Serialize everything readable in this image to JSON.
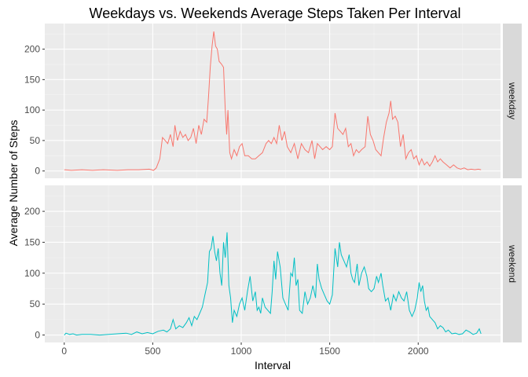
{
  "chart_data": {
    "type": "line",
    "title": "Weekdays vs. Weekends Average Steps Taken Per Interval",
    "xlabel": "Interval",
    "ylabel": "Average Number of Steps",
    "xlim": [
      -110,
      2465
    ],
    "ylim": [
      -12,
      242
    ],
    "x_ticks": [
      0,
      500,
      1000,
      1500,
      2000
    ],
    "y_ticks": [
      0,
      50,
      100,
      150,
      200
    ],
    "grid": true,
    "facet_by": "day type",
    "panel_background": "#ebebeb",
    "strip_background": "#d9d9d9",
    "panels": [
      {
        "label": "weekday",
        "color": "#F8766D",
        "points": [
          [
            0,
            2
          ],
          [
            40,
            1
          ],
          [
            100,
            2
          ],
          [
            160,
            1
          ],
          [
            220,
            2
          ],
          [
            300,
            1
          ],
          [
            360,
            2
          ],
          [
            420,
            2
          ],
          [
            480,
            3
          ],
          [
            505,
            1
          ],
          [
            520,
            5
          ],
          [
            540,
            20
          ],
          [
            555,
            55
          ],
          [
            570,
            50
          ],
          [
            585,
            45
          ],
          [
            600,
            60
          ],
          [
            615,
            40
          ],
          [
            625,
            75
          ],
          [
            640,
            50
          ],
          [
            655,
            65
          ],
          [
            670,
            55
          ],
          [
            685,
            60
          ],
          [
            700,
            50
          ],
          [
            715,
            55
          ],
          [
            730,
            70
          ],
          [
            745,
            45
          ],
          [
            760,
            75
          ],
          [
            775,
            60
          ],
          [
            790,
            85
          ],
          [
            805,
            80
          ],
          [
            815,
            120
          ],
          [
            825,
            170
          ],
          [
            835,
            205
          ],
          [
            845,
            229
          ],
          [
            855,
            205
          ],
          [
            865,
            200
          ],
          [
            875,
            180
          ],
          [
            890,
            175
          ],
          [
            900,
            170
          ],
          [
            910,
            100
          ],
          [
            918,
            60
          ],
          [
            925,
            100
          ],
          [
            935,
            30
          ],
          [
            945,
            20
          ],
          [
            960,
            35
          ],
          [
            975,
            25
          ],
          [
            990,
            40
          ],
          [
            1005,
            45
          ],
          [
            1020,
            25
          ],
          [
            1040,
            25
          ],
          [
            1060,
            20
          ],
          [
            1080,
            20
          ],
          [
            1100,
            25
          ],
          [
            1120,
            30
          ],
          [
            1140,
            45
          ],
          [
            1155,
            50
          ],
          [
            1170,
            45
          ],
          [
            1185,
            55
          ],
          [
            1200,
            45
          ],
          [
            1215,
            75
          ],
          [
            1230,
            50
          ],
          [
            1245,
            65
          ],
          [
            1260,
            40
          ],
          [
            1280,
            30
          ],
          [
            1300,
            45
          ],
          [
            1320,
            20
          ],
          [
            1340,
            45
          ],
          [
            1360,
            35
          ],
          [
            1380,
            30
          ],
          [
            1400,
            50
          ],
          [
            1415,
            20
          ],
          [
            1430,
            45
          ],
          [
            1445,
            40
          ],
          [
            1460,
            35
          ],
          [
            1480,
            40
          ],
          [
            1500,
            35
          ],
          [
            1515,
            40
          ],
          [
            1530,
            95
          ],
          [
            1545,
            70
          ],
          [
            1560,
            65
          ],
          [
            1575,
            60
          ],
          [
            1590,
            70
          ],
          [
            1605,
            40
          ],
          [
            1620,
            45
          ],
          [
            1635,
            25
          ],
          [
            1650,
            35
          ],
          [
            1665,
            30
          ],
          [
            1680,
            35
          ],
          [
            1700,
            40
          ],
          [
            1715,
            90
          ],
          [
            1730,
            60
          ],
          [
            1745,
            50
          ],
          [
            1760,
            35
          ],
          [
            1775,
            30
          ],
          [
            1790,
            25
          ],
          [
            1805,
            55
          ],
          [
            1820,
            80
          ],
          [
            1835,
            95
          ],
          [
            1845,
            115
          ],
          [
            1855,
            85
          ],
          [
            1870,
            90
          ],
          [
            1885,
            80
          ],
          [
            1900,
            40
          ],
          [
            1915,
            60
          ],
          [
            1930,
            20
          ],
          [
            1945,
            30
          ],
          [
            1960,
            35
          ],
          [
            1975,
            20
          ],
          [
            1990,
            25
          ],
          [
            2005,
            10
          ],
          [
            2020,
            20
          ],
          [
            2035,
            10
          ],
          [
            2050,
            15
          ],
          [
            2065,
            8
          ],
          [
            2080,
            15
          ],
          [
            2095,
            25
          ],
          [
            2110,
            15
          ],
          [
            2125,
            20
          ],
          [
            2140,
            15
          ],
          [
            2160,
            10
          ],
          [
            2180,
            5
          ],
          [
            2200,
            10
          ],
          [
            2220,
            5
          ],
          [
            2240,
            3
          ],
          [
            2260,
            5
          ],
          [
            2280,
            2
          ],
          [
            2300,
            3
          ],
          [
            2320,
            2
          ],
          [
            2340,
            3
          ],
          [
            2355,
            2
          ]
        ]
      },
      {
        "label": "weekend",
        "color": "#00BFC4",
        "points": [
          [
            0,
            0
          ],
          [
            10,
            3
          ],
          [
            30,
            1
          ],
          [
            50,
            2
          ],
          [
            70,
            0
          ],
          [
            100,
            1
          ],
          [
            150,
            1
          ],
          [
            200,
            0
          ],
          [
            250,
            1
          ],
          [
            300,
            2
          ],
          [
            350,
            3
          ],
          [
            380,
            1
          ],
          [
            410,
            5
          ],
          [
            440,
            2
          ],
          [
            470,
            4
          ],
          [
            500,
            2
          ],
          [
            530,
            6
          ],
          [
            560,
            8
          ],
          [
            580,
            5
          ],
          [
            600,
            10
          ],
          [
            615,
            25
          ],
          [
            630,
            10
          ],
          [
            650,
            15
          ],
          [
            670,
            12
          ],
          [
            690,
            20
          ],
          [
            705,
            28
          ],
          [
            720,
            15
          ],
          [
            735,
            30
          ],
          [
            750,
            25
          ],
          [
            765,
            35
          ],
          [
            780,
            45
          ],
          [
            795,
            65
          ],
          [
            810,
            85
          ],
          [
            820,
            135
          ],
          [
            830,
            140
          ],
          [
            840,
            160
          ],
          [
            850,
            135
          ],
          [
            860,
            120
          ],
          [
            870,
            140
          ],
          [
            880,
            100
          ],
          [
            890,
            80
          ],
          [
            900,
            150
          ],
          [
            910,
            125
          ],
          [
            920,
            166
          ],
          [
            930,
            80
          ],
          [
            940,
            60
          ],
          [
            950,
            20
          ],
          [
            960,
            40
          ],
          [
            975,
            30
          ],
          [
            990,
            50
          ],
          [
            1005,
            60
          ],
          [
            1020,
            40
          ],
          [
            1035,
            70
          ],
          [
            1050,
            95
          ],
          [
            1065,
            55
          ],
          [
            1080,
            70
          ],
          [
            1090,
            40
          ],
          [
            1100,
            45
          ],
          [
            1110,
            35
          ],
          [
            1120,
            60
          ],
          [
            1135,
            45
          ],
          [
            1150,
            40
          ],
          [
            1165,
            35
          ],
          [
            1175,
            70
          ],
          [
            1185,
            120
          ],
          [
            1195,
            90
          ],
          [
            1205,
            135
          ],
          [
            1220,
            110
          ],
          [
            1235,
            60
          ],
          [
            1250,
            50
          ],
          [
            1265,
            40
          ],
          [
            1280,
            100
          ],
          [
            1290,
            95
          ],
          [
            1300,
            125
          ],
          [
            1310,
            80
          ],
          [
            1320,
            90
          ],
          [
            1330,
            40
          ],
          [
            1345,
            35
          ],
          [
            1360,
            70
          ],
          [
            1375,
            50
          ],
          [
            1390,
            60
          ],
          [
            1405,
            80
          ],
          [
            1420,
            60
          ],
          [
            1430,
            115
          ],
          [
            1440,
            90
          ],
          [
            1455,
            75
          ],
          [
            1470,
            65
          ],
          [
            1485,
            55
          ],
          [
            1500,
            50
          ],
          [
            1515,
            65
          ],
          [
            1530,
            140
          ],
          [
            1545,
            110
          ],
          [
            1555,
            150
          ],
          [
            1565,
            130
          ],
          [
            1580,
            120
          ],
          [
            1595,
            110
          ],
          [
            1610,
            130
          ],
          [
            1620,
            100
          ],
          [
            1630,
            90
          ],
          [
            1640,
            85
          ],
          [
            1655,
            115
          ],
          [
            1665,
            80
          ],
          [
            1680,
            100
          ],
          [
            1695,
            110
          ],
          [
            1710,
            95
          ],
          [
            1720,
            75
          ],
          [
            1735,
            70
          ],
          [
            1750,
            75
          ],
          [
            1765,
            95
          ],
          [
            1775,
            85
          ],
          [
            1790,
            100
          ],
          [
            1800,
            80
          ],
          [
            1815,
            55
          ],
          [
            1830,
            60
          ],
          [
            1845,
            40
          ],
          [
            1860,
            65
          ],
          [
            1875,
            55
          ],
          [
            1890,
            70
          ],
          [
            1905,
            60
          ],
          [
            1920,
            55
          ],
          [
            1935,
            70
          ],
          [
            1950,
            40
          ],
          [
            1965,
            30
          ],
          [
            1980,
            40
          ],
          [
            1995,
            60
          ],
          [
            2005,
            85
          ],
          [
            2015,
            70
          ],
          [
            2025,
            80
          ],
          [
            2035,
            55
          ],
          [
            2045,
            40
          ],
          [
            2055,
            45
          ],
          [
            2065,
            30
          ],
          [
            2080,
            25
          ],
          [
            2095,
            20
          ],
          [
            2110,
            10
          ],
          [
            2125,
            15
          ],
          [
            2140,
            12
          ],
          [
            2155,
            5
          ],
          [
            2170,
            8
          ],
          [
            2190,
            2
          ],
          [
            2210,
            3
          ],
          [
            2230,
            1
          ],
          [
            2250,
            2
          ],
          [
            2270,
            8
          ],
          [
            2290,
            5
          ],
          [
            2310,
            1
          ],
          [
            2330,
            3
          ],
          [
            2345,
            10
          ],
          [
            2355,
            2
          ]
        ]
      }
    ]
  }
}
